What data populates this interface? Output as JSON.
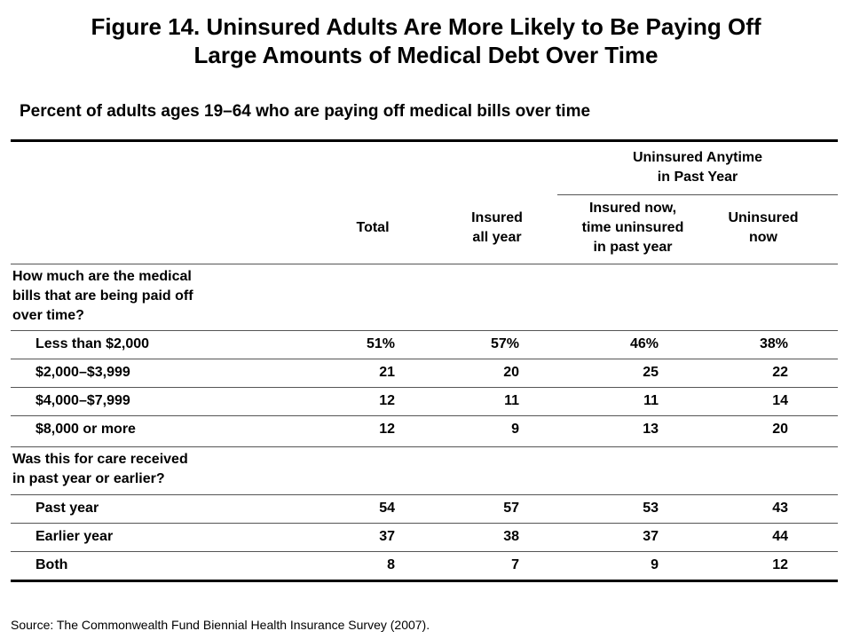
{
  "title_line1": "Figure 14. Uninsured Adults Are More Likely to Be Paying Off",
  "title_line2": "Large Amounts of Medical Debt Over Time",
  "subtitle": "Percent of adults ages 19–64 who are paying off medical bills over time",
  "group_header": {
    "line1": "Uninsured Anytime",
    "line2": "in Past Year"
  },
  "columns": {
    "total": [
      "Total"
    ],
    "insured": [
      "Insured",
      "all year"
    ],
    "insured_now": [
      "Insured now,",
      "time uninsured",
      "in past year"
    ],
    "uninsured_now": [
      "Uninsured",
      "now"
    ]
  },
  "section1": {
    "line1": "How much are the medical",
    "line2": "bills that are being paid off",
    "line3": "over time?"
  },
  "section2": {
    "line1": "Was this for care received",
    "line2": "in past year or earlier?"
  },
  "source": "Source: The Commonwealth Fund Biennial Health Insurance Survey (2007).",
  "chart_data": {
    "type": "table",
    "column_headers": [
      "Total",
      "Insured all year",
      "Insured now, time uninsured in past year",
      "Uninsured now"
    ],
    "rows": [
      {
        "label": "Less than $2,000",
        "cells": [
          "51%",
          "57%",
          "46%",
          "38%"
        ]
      },
      {
        "label": "$2,000–$3,999",
        "cells": [
          "21",
          "20",
          "25",
          "22"
        ]
      },
      {
        "label": "$4,000–$7,999",
        "cells": [
          "12",
          "11",
          "11",
          "14"
        ]
      },
      {
        "label": "$8,000 or more",
        "cells": [
          "12",
          "9",
          "13",
          "20"
        ]
      },
      {
        "label": "Past year",
        "cells": [
          "54",
          "57",
          "53",
          "43"
        ]
      },
      {
        "label": "Earlier year",
        "cells": [
          "37",
          "38",
          "37",
          "44"
        ]
      },
      {
        "label": "Both",
        "cells": [
          "8",
          "7",
          "9",
          "12"
        ]
      }
    ]
  }
}
